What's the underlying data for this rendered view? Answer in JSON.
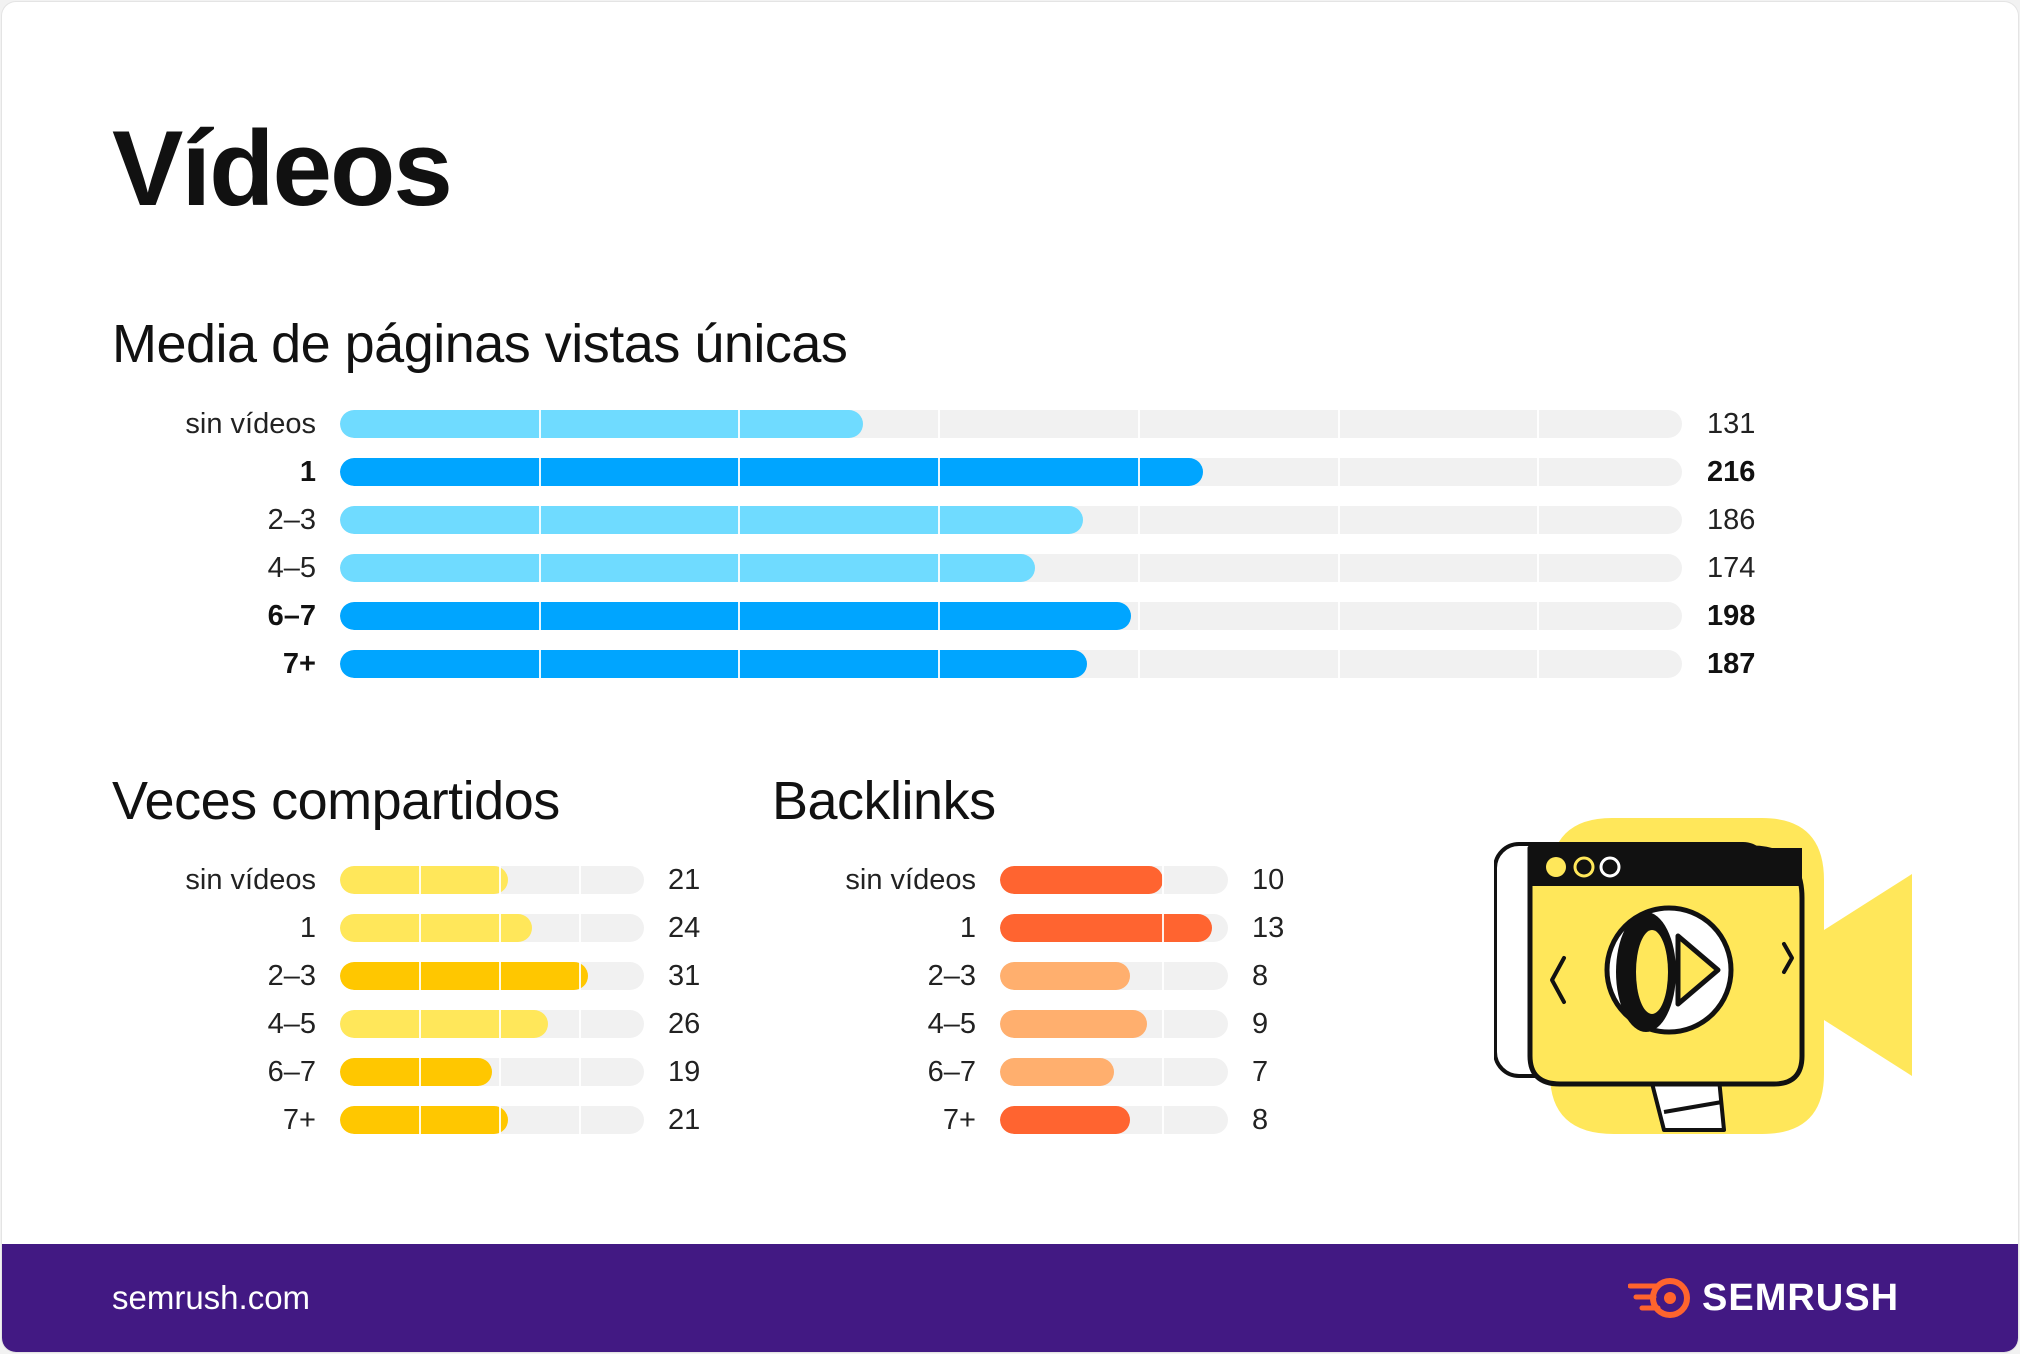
{
  "title": "Vídeos",
  "footer": {
    "url": "semrush.com",
    "brand": "SEMRUSH"
  },
  "colors": {
    "light_blue": "#6fdbff",
    "blue": "#00a5ff",
    "light_yellow": "#ffe75a",
    "yellow": "#ffc700",
    "light_orange": "#ffaf6e",
    "orange": "#ff6430",
    "track": "#f1f1f1",
    "footer": "#421983"
  },
  "icons": {
    "brand_logo": "semrush-fire-icon",
    "illustration": "video-camera-icon"
  },
  "chart_data": [
    {
      "type": "bar",
      "orientation": "horizontal",
      "title": "Media de páginas vistas únicas",
      "categories": [
        "sin vídeos",
        "1",
        "2–3",
        "4–5",
        "6–7",
        "7+"
      ],
      "values": [
        131,
        216,
        186,
        174,
        198,
        187
      ],
      "value_labels": [
        "131",
        "216",
        "186",
        "174",
        "198",
        "187"
      ],
      "highlighted": [
        false,
        true,
        false,
        false,
        true,
        true
      ],
      "bar_colors": [
        "light_blue",
        "blue",
        "light_blue",
        "light_blue",
        "blue",
        "blue"
      ],
      "xlim": [
        0,
        336
      ],
      "grid_step": 50,
      "grid": true
    },
    {
      "type": "bar",
      "orientation": "horizontal",
      "title": "Veces compartidos",
      "categories": [
        "sin vídeos",
        "1",
        "2–3",
        "4–5",
        "6–7",
        "7+"
      ],
      "values": [
        21,
        24,
        31,
        26,
        19,
        21
      ],
      "value_labels": [
        "21",
        "24",
        "31",
        "26",
        "19",
        "21"
      ],
      "highlighted": [
        false,
        false,
        false,
        false,
        false,
        false
      ],
      "bar_colors": [
        "light_yellow",
        "light_yellow",
        "yellow",
        "light_yellow",
        "yellow",
        "yellow"
      ],
      "xlim": [
        0,
        38
      ],
      "grid_step": 10,
      "grid": true
    },
    {
      "type": "bar",
      "orientation": "horizontal",
      "title": "Backlinks",
      "categories": [
        "sin vídeos",
        "1",
        "2–3",
        "4–5",
        "6–7",
        "7+"
      ],
      "values": [
        10,
        13,
        8,
        9,
        7,
        8
      ],
      "value_labels": [
        "10",
        "13",
        "8",
        "9",
        "7",
        "8"
      ],
      "highlighted": [
        false,
        false,
        false,
        false,
        false,
        false
      ],
      "bar_colors": [
        "orange",
        "orange",
        "light_orange",
        "light_orange",
        "light_orange",
        "orange"
      ],
      "xlim": [
        0,
        14
      ],
      "grid_step": 10,
      "grid": true
    }
  ]
}
